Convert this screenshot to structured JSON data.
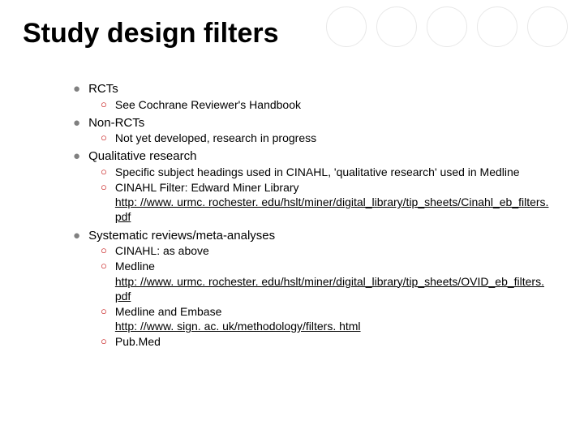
{
  "title": "Study design filters",
  "decor": {
    "circle_count": 5,
    "circle_border_color": "#e8e8e8",
    "background_color": "#ffffff"
  },
  "bullets": {
    "l1_color": "#808080",
    "l1_glyph": "●",
    "l2_color": "#c00000",
    "l2_glyph": "○"
  },
  "items": [
    {
      "label": "RCTs",
      "subs": [
        {
          "text": "See Cochrane Reviewer's Handbook"
        }
      ]
    },
    {
      "label": "Non-RCTs",
      "subs": [
        {
          "text": "Not yet developed, research in progress"
        }
      ]
    },
    {
      "label": "Qualitative research",
      "subs": [
        {
          "text": "Specific subject headings used in CINAHL, 'qualitative research' used in Medline"
        },
        {
          "text": "CINAHL Filter: Edward Miner Library",
          "link": "http: //www. urmc. rochester. edu/hslt/miner/digital_library/tip_sheets/Cinahl_eb_filters. pdf"
        }
      ]
    },
    {
      "label": "Systematic reviews/meta-analyses",
      "subs": [
        {
          "text": "CINAHL: as above"
        },
        {
          "text": "Medline",
          "link": "http: //www. urmc. rochester. edu/hslt/miner/digital_library/tip_sheets/OVID_eb_filters. pdf"
        },
        {
          "text": "Medline and Embase",
          "link": "http: //www. sign. ac. uk/methodology/filters. html"
        },
        {
          "text": "Pub.Med"
        }
      ]
    }
  ]
}
